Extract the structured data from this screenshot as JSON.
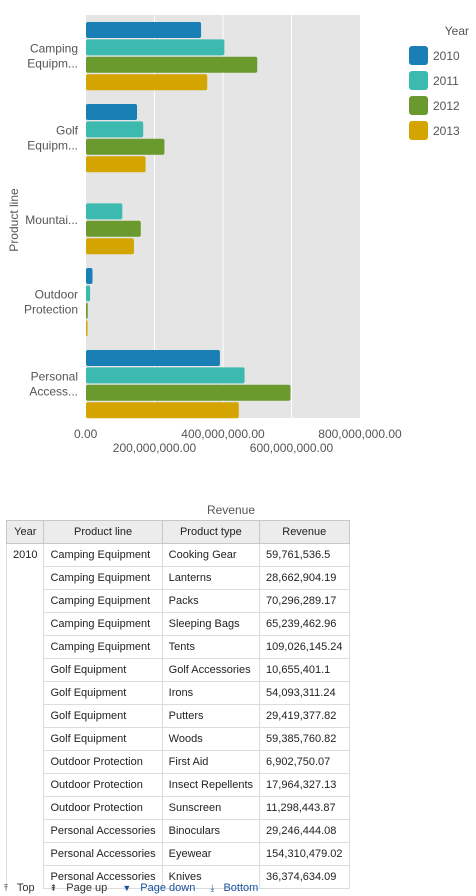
{
  "chart_data": {
    "type": "bar",
    "orientation": "horizontal",
    "categories": [
      "Camping Equipm...",
      "Golf Equipm...",
      "Mountai...",
      "Outdoor Protection",
      "Personal Access..."
    ],
    "category_label_lines": [
      [
        "Camping",
        "Equipm..."
      ],
      [
        "Golf",
        "Equipm..."
      ],
      [
        "Mountai..."
      ],
      [
        "Outdoor",
        "Protection"
      ],
      [
        "Personal",
        "Access..."
      ]
    ],
    "series": [
      {
        "name": "2010",
        "color": "#1a7fb5",
        "values": [
          336000000,
          149000000,
          0,
          19000000,
          391000000
        ]
      },
      {
        "name": "2011",
        "color": "#3cbab0",
        "values": [
          404000000,
          167000000,
          106000000,
          12000000,
          463000000
        ]
      },
      {
        "name": "2012",
        "color": "#6a9a2e",
        "values": [
          500000000,
          229000000,
          160000000,
          5000000,
          597000000
        ]
      },
      {
        "name": "2013",
        "color": "#d4a500",
        "values": [
          354000000,
          174000000,
          140000000,
          1000000,
          446000000
        ]
      }
    ],
    "xlabel": "Revenue",
    "ylabel": "Product line",
    "xlim": [
      0,
      800000000
    ],
    "xticks": [
      0,
      200000000,
      400000000,
      600000000,
      800000000
    ],
    "xtick_labels": [
      "0.00",
      "200,000,000.00",
      "400,000,000.00",
      "600,000,000.00",
      "800,000,000.00"
    ],
    "legend_title": "Year",
    "legend_position": "top-right",
    "grid": true
  },
  "table": {
    "columns": [
      "Year",
      "Product line",
      "Product type",
      "Revenue"
    ],
    "year": "2010",
    "rows": [
      [
        "Camping Equipment",
        "Cooking Gear",
        "59,761,536.5"
      ],
      [
        "Camping Equipment",
        "Lanterns",
        "28,662,904.19"
      ],
      [
        "Camping Equipment",
        "Packs",
        "70,296,289.17"
      ],
      [
        "Camping Equipment",
        "Sleeping Bags",
        "65,239,462.96"
      ],
      [
        "Camping Equipment",
        "Tents",
        "109,026,145.24"
      ],
      [
        "Golf Equipment",
        "Golf Accessories",
        "10,655,401.1"
      ],
      [
        "Golf Equipment",
        "Irons",
        "54,093,311.24"
      ],
      [
        "Golf Equipment",
        "Putters",
        "29,419,377.82"
      ],
      [
        "Golf Equipment",
        "Woods",
        "59,385,760.82"
      ],
      [
        "Outdoor Protection",
        "First Aid",
        "6,902,750.07"
      ],
      [
        "Outdoor Protection",
        "Insect Repellents",
        "17,964,327.13"
      ],
      [
        "Outdoor Protection",
        "Sunscreen",
        "11,298,443.87"
      ],
      [
        "Personal Accessories",
        "Binoculars",
        "29,246,444.08"
      ],
      [
        "Personal Accessories",
        "Eyewear",
        "154,310,479.02"
      ],
      [
        "Personal Accessories",
        "Knives",
        "36,374,634.09"
      ]
    ]
  },
  "pager": {
    "top": "Top",
    "page_up": "Page up",
    "page_down": "Page down",
    "bottom": "Bottom"
  }
}
